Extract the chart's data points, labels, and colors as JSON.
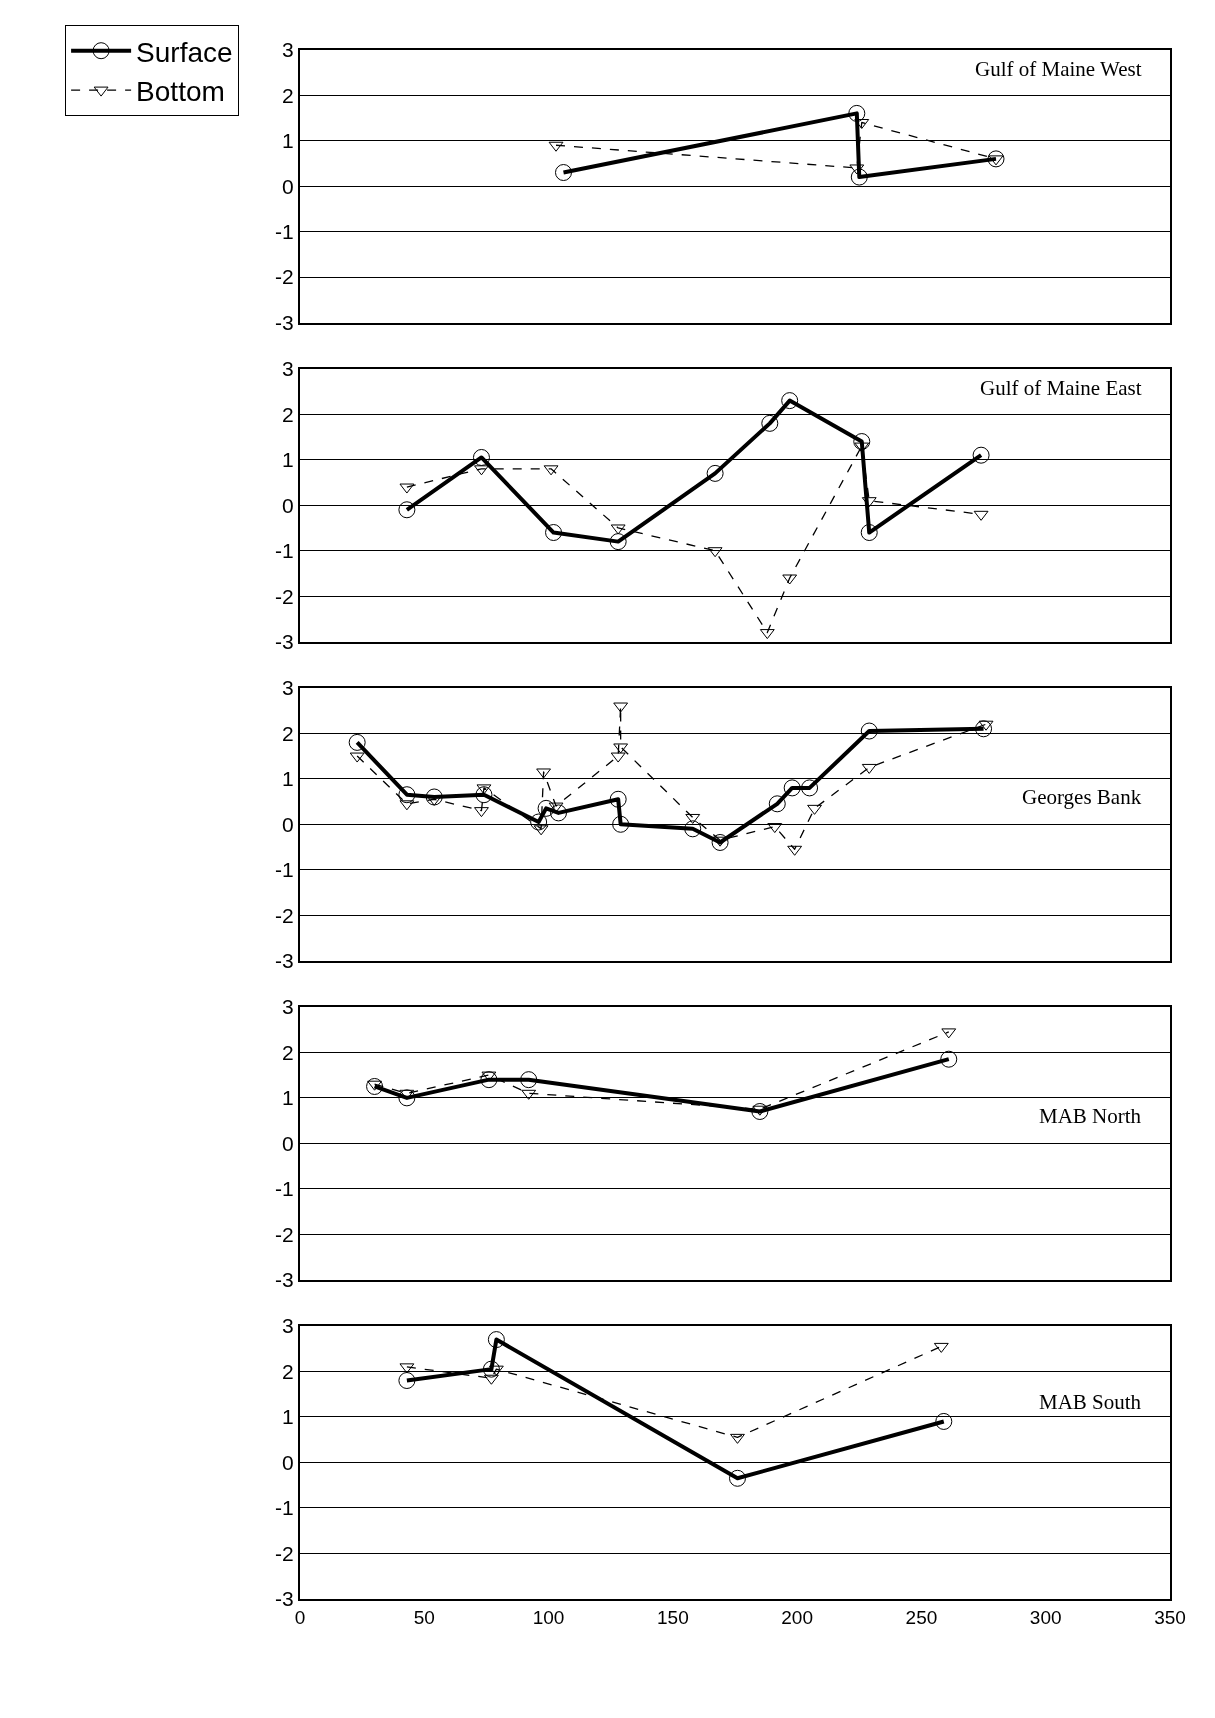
{
  "chart_data": [
    {
      "type": "line",
      "title": "Gulf of Maine West",
      "xlim": [
        0,
        350
      ],
      "xticks": [
        0,
        50,
        100,
        150,
        200,
        250,
        300,
        350
      ],
      "ylim": [
        -3,
        3
      ],
      "yticks": [
        -3,
        -2,
        -1,
        0,
        1,
        2,
        3
      ],
      "grid": "y",
      "tick_labels": "y",
      "legend": "left",
      "series": [
        {
          "name": "Surface",
          "color": "#000000",
          "marker": "circle",
          "line_style": "solid",
          "x": [
            106,
            224,
            225,
            280
          ],
          "values": [
            0.3,
            1.6,
            0.2,
            0.6
          ]
        },
        {
          "name": "Bottom",
          "color": "#000000",
          "marker": "triangle",
          "line_style": "dashed",
          "x": [
            103,
            224,
            226,
            280
          ],
          "values": [
            0.9,
            0.4,
            1.4,
            0.6
          ]
        }
      ]
    },
    {
      "type": "line",
      "title": "Gulf of Maine East",
      "xlim": [
        0,
        350
      ],
      "xticks": [
        0,
        50,
        100,
        150,
        200,
        250,
        300,
        350
      ],
      "ylim": [
        -3,
        3
      ],
      "yticks": [
        -3,
        -2,
        -1,
        0,
        1,
        2,
        3
      ],
      "grid": "y",
      "tick_labels": "y",
      "series": [
        {
          "color": "#000000",
          "marker": "circle",
          "line_style": "solid",
          "x": [
            43,
            73,
            102,
            128,
            167,
            189,
            197,
            226,
            229,
            274
          ],
          "values": [
            -0.1,
            1.05,
            -0.6,
            -0.8,
            0.7,
            1.8,
            2.3,
            1.4,
            -0.6,
            1.1
          ]
        },
        {
          "color": "#000000",
          "marker": "triangle",
          "line_style": "dashed",
          "x": [
            43,
            73,
            101,
            128,
            167,
            188,
            197,
            226,
            229,
            274
          ],
          "values": [
            0.4,
            0.8,
            0.8,
            -0.5,
            -1.0,
            -2.8,
            -1.6,
            1.3,
            0.1,
            -0.2
          ]
        }
      ]
    },
    {
      "type": "line",
      "title": "Georges Bank",
      "xlim": [
        0,
        350
      ],
      "xticks": [
        0,
        50,
        100,
        150,
        200,
        250,
        300,
        350
      ],
      "ylim": [
        -3,
        3
      ],
      "yticks": [
        -3,
        -2,
        -1,
        0,
        1,
        2,
        3
      ],
      "grid": "y",
      "tick_labels": "y",
      "series": [
        {
          "color": "#000000",
          "marker": "circle",
          "line_style": "solid",
          "x": [
            23,
            43,
            54,
            74,
            96,
            99,
            104,
            128,
            129,
            158,
            169,
            192,
            198,
            205,
            229,
            275
          ],
          "values": [
            1.8,
            0.65,
            0.6,
            0.65,
            0.05,
            0.35,
            0.25,
            0.55,
            0.0,
            -0.1,
            -0.4,
            0.45,
            0.8,
            0.8,
            2.05,
            2.1
          ]
        },
        {
          "color": "#000000",
          "marker": "triangle",
          "line_style": "dashed",
          "x": [
            23,
            43,
            54,
            73,
            74,
            97,
            98,
            103,
            128,
            129,
            129,
            158,
            169,
            191,
            199,
            207,
            229,
            276
          ],
          "values": [
            1.5,
            0.45,
            0.55,
            0.3,
            0.8,
            -0.1,
            1.15,
            0.4,
            1.5,
            2.6,
            1.7,
            0.15,
            -0.35,
            -0.05,
            -0.55,
            0.35,
            1.25,
            2.2
          ]
        }
      ]
    },
    {
      "type": "line",
      "title": "MAB North",
      "xlim": [
        0,
        350
      ],
      "xticks": [
        0,
        50,
        100,
        150,
        200,
        250,
        300,
        350
      ],
      "ylim": [
        -3,
        3
      ],
      "yticks": [
        -3,
        -2,
        -1,
        0,
        1,
        2,
        3
      ],
      "grid": "y",
      "tick_labels": "y",
      "series": [
        {
          "color": "#000000",
          "marker": "circle",
          "line_style": "solid",
          "x": [
            30,
            43,
            76,
            92,
            185,
            261
          ],
          "values": [
            1.25,
            1.0,
            1.4,
            1.4,
            0.7,
            1.85
          ]
        },
        {
          "color": "#000000",
          "marker": "triangle",
          "line_style": "dashed",
          "x": [
            30,
            43,
            76,
            92,
            185,
            261
          ],
          "values": [
            1.3,
            1.1,
            1.5,
            1.1,
            0.75,
            2.45
          ]
        }
      ]
    },
    {
      "type": "line",
      "title": "MAB South",
      "xlim": [
        0,
        350
      ],
      "xticks": [
        0,
        50,
        100,
        150,
        200,
        250,
        300,
        350
      ],
      "ylim": [
        -3,
        3
      ],
      "yticks": [
        -3,
        -2,
        -1,
        0,
        1,
        2,
        3
      ],
      "grid": "y",
      "series": [
        {
          "color": "#000000",
          "marker": "circle",
          "line_style": "solid",
          "x": [
            43,
            77,
            79,
            176,
            259
          ],
          "values": [
            1.8,
            2.05,
            2.7,
            -0.35,
            0.9
          ]
        },
        {
          "color": "#000000",
          "marker": "triangle",
          "line_style": "dashed",
          "x": [
            43,
            77,
            79,
            176,
            258
          ],
          "values": [
            2.1,
            1.85,
            2.05,
            0.55,
            2.55
          ]
        }
      ]
    }
  ]
}
